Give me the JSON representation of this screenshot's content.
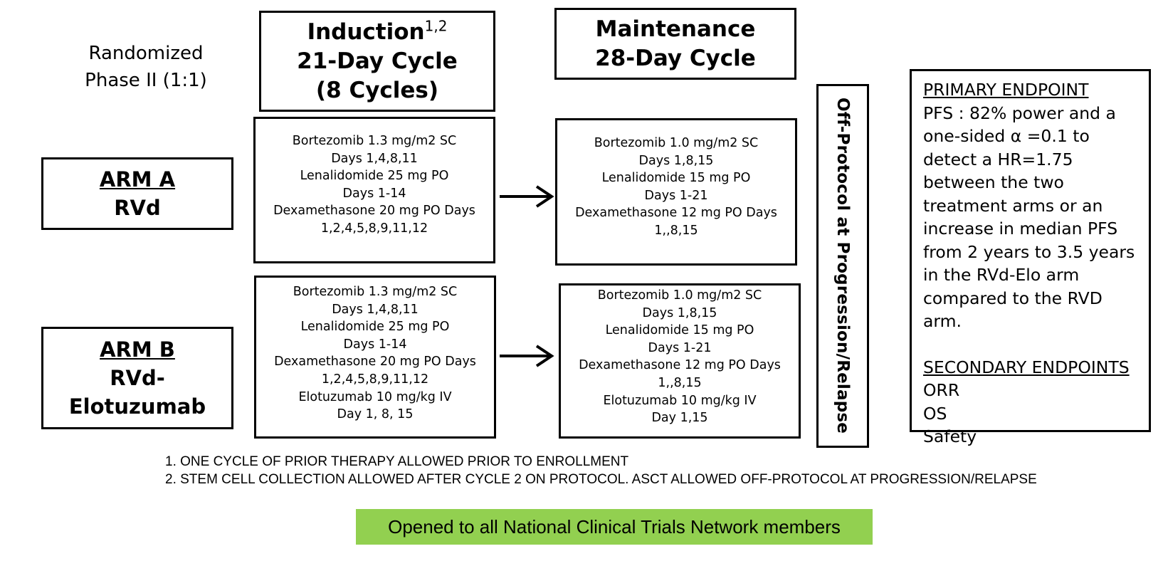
{
  "randomized": {
    "line1": "Randomized",
    "line2": "Phase II (1:1)"
  },
  "induction": {
    "title": "Induction",
    "superscript": "1,2",
    "line2": "21-Day Cycle",
    "line3": "(8 Cycles)"
  },
  "maintenance": {
    "line1": "Maintenance",
    "line2": "28-Day Cycle"
  },
  "arm_a": {
    "title": "ARM A",
    "regimen": "RVd"
  },
  "arm_b": {
    "title": "ARM B",
    "regimen_line1": "RVd-",
    "regimen_line2": "Elotuzumab"
  },
  "arm_a_induction": [
    "Bortezomib 1.3 mg/m2 SC",
    "Days 1,4,8,11",
    "Lenalidomide 25 mg PO",
    "Days 1-14",
    "Dexamethasone 20 mg PO Days",
    "1,2,4,5,8,9,11,12"
  ],
  "arm_a_maintenance": [
    "Bortezomib 1.0 mg/m2 SC",
    "Days 1,8,15",
    "Lenalidomide 15 mg PO",
    "Days 1-21",
    "Dexamethasone 12 mg PO Days",
    "1,,8,15"
  ],
  "arm_b_induction": [
    "Bortezomib 1.3 mg/m2 SC",
    "Days 1,4,8,11",
    "Lenalidomide 25 mg PO",
    "Days 1-14",
    "Dexamethasone 20 mg PO Days",
    "1,2,4,5,8,9,11,12",
    "Elotuzumab 10 mg/kg IV",
    "Day 1, 8, 15"
  ],
  "arm_b_maintenance": [
    "Bortezomib 1.0 mg/m2 SC",
    "Days 1,8,15",
    "Lenalidomide 15 mg PO",
    "Days 1-21",
    "Dexamethasone 12 mg PO Days",
    "1,,8,15",
    "Elotuzumab 10 mg/kg IV",
    "Day 1,15"
  ],
  "off_protocol": "Off-Protocol at Progression/Relapse",
  "endpoints": {
    "primary_title": "PRIMARY ENDPOINT",
    "primary_text": "PFS : 82% power and a one-sided α =0.1 to detect a HR=1.75 between the two treatment arms or an increase in median PFS from 2 years to 3.5 years in the RVd-Elo arm compared to the RVD arm.",
    "secondary_title": "SECONDARY ENDPOINTS",
    "secondary_items": [
      "ORR",
      "OS",
      "Safety"
    ]
  },
  "footnotes": [
    "1.  ONE CYCLE OF PRIOR THERAPY ALLOWED PRIOR TO ENROLLMENT",
    "2. STEM CELL COLLECTION ALLOWED AFTER CYCLE 2 ON PROTOCOL. ASCT ALLOWED OFF-PROTOCOL AT PROGRESSION/RELAPSE"
  ],
  "banner": "Opened to all National Clinical Trials Network members",
  "colors": {
    "banner_bg": "#92d050",
    "border": "#000000"
  }
}
